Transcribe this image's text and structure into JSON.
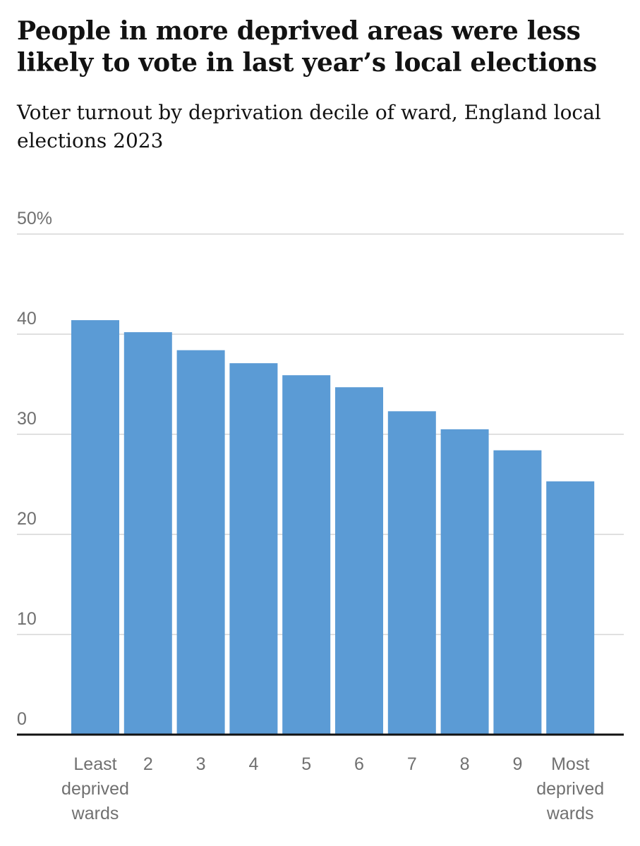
{
  "header": {
    "title": "People in more deprived areas were less likely to vote in last year’s local elections",
    "subtitle": "Voter turnout by deprivation decile of ward, England local elections 2023"
  },
  "colors": {
    "bar": "#5b9bd5",
    "grid": "#d6d6d6",
    "axis": "#121212",
    "text": "#121212",
    "label": "#707070"
  },
  "chart_data": {
    "type": "bar",
    "title": "People in more deprived areas were less likely to vote in last year’s local elections",
    "subtitle": "Voter turnout by deprivation decile of ward, England local elections 2023",
    "xlabel": "",
    "ylabel": "",
    "categories": [
      "Least deprived wards",
      "2",
      "3",
      "4",
      "5",
      "6",
      "7",
      "8",
      "9",
      "Most deprived wards"
    ],
    "category_lines": [
      [
        "Least",
        "deprived",
        "wards"
      ],
      [
        "2"
      ],
      [
        "3"
      ],
      [
        "4"
      ],
      [
        "5"
      ],
      [
        "6"
      ],
      [
        "7"
      ],
      [
        "8"
      ],
      [
        "9"
      ],
      [
        "Most",
        "deprived",
        "wards"
      ]
    ],
    "values": [
      41.4,
      40.2,
      38.4,
      37.1,
      35.9,
      34.7,
      32.3,
      30.5,
      28.4,
      25.3
    ],
    "ylim": [
      0,
      50
    ],
    "yticks": [
      0,
      10,
      20,
      30,
      40,
      50
    ],
    "ytick_labels": [
      "0",
      "10",
      "20",
      "30",
      "40",
      "50%"
    ],
    "grid": true,
    "legend": "none"
  }
}
